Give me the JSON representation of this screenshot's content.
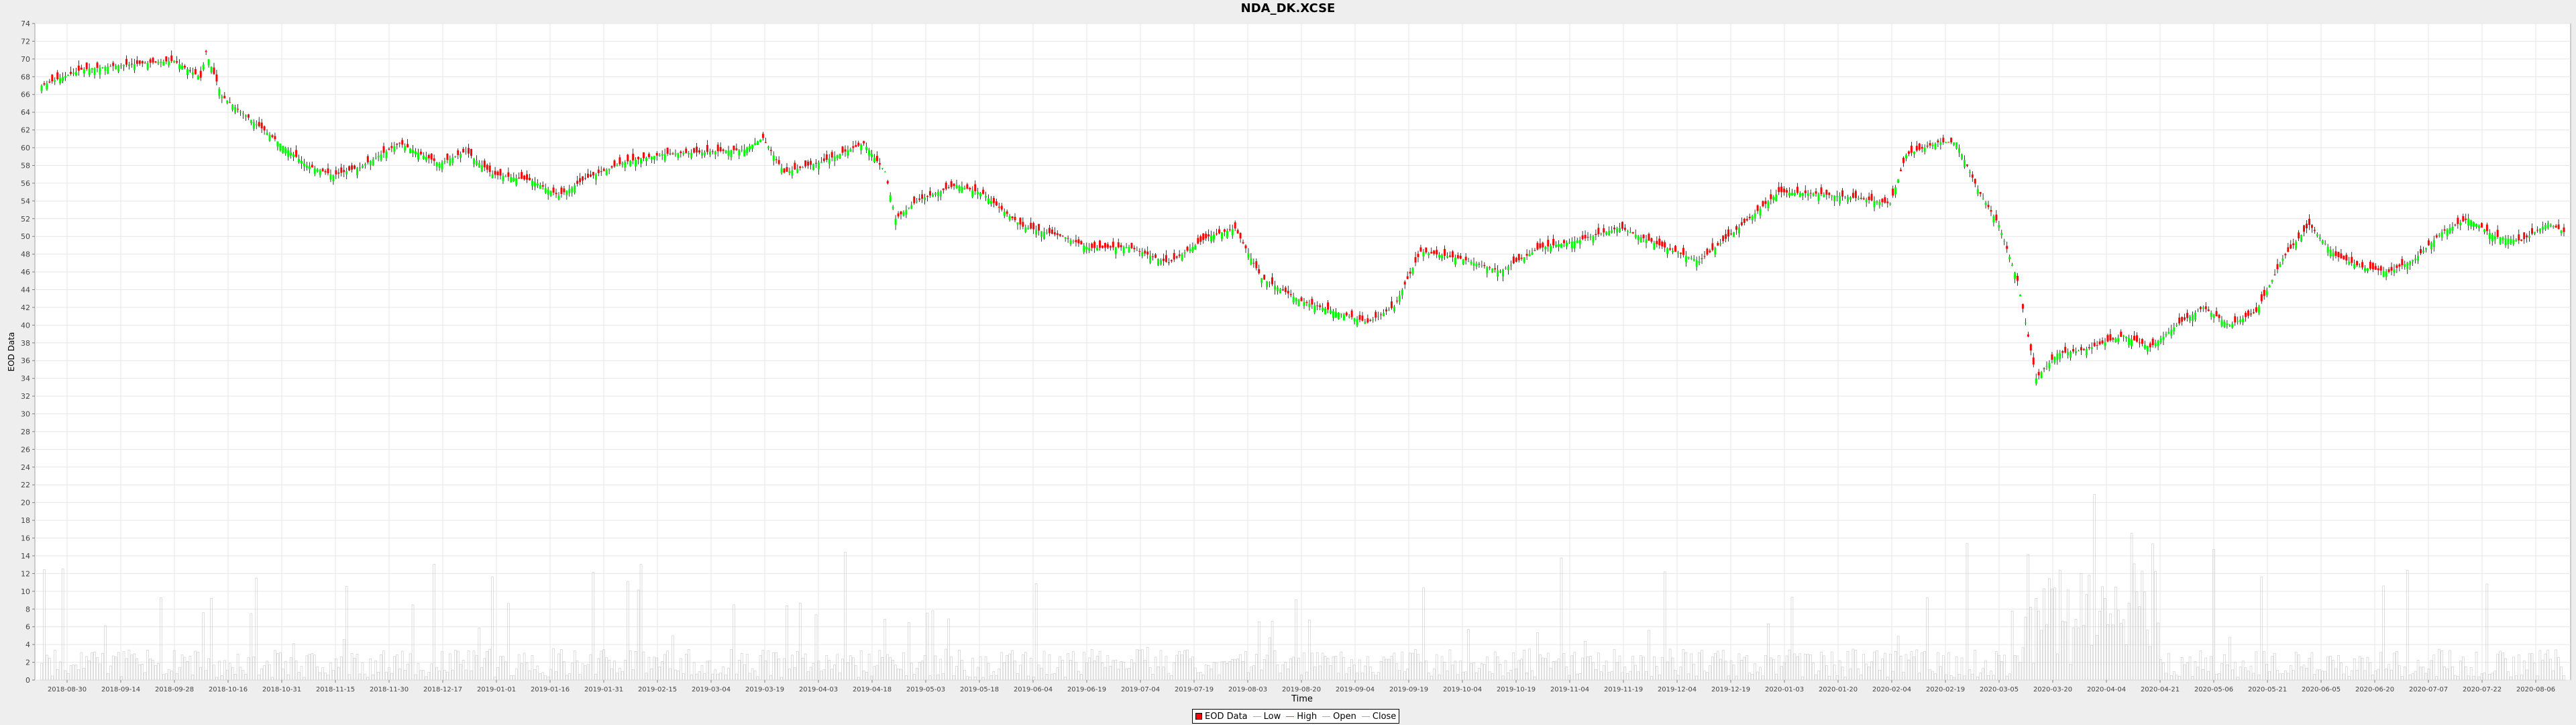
{
  "chart_data": {
    "type": "candlestick",
    "title": "NDA_DK.XCSE",
    "xlabel": "Time",
    "ylabel": "EOD Data",
    "ylim": [
      0,
      74
    ],
    "y_ticks": [
      0,
      2,
      4,
      6,
      8,
      10,
      12,
      14,
      16,
      18,
      20,
      22,
      24,
      26,
      28,
      30,
      32,
      34,
      36,
      38,
      40,
      42,
      44,
      46,
      48,
      50,
      52,
      54,
      56,
      58,
      60,
      62,
      64,
      66,
      68,
      70,
      72,
      74
    ],
    "x_ticks": [
      "2018-08-30",
      "2018-09-14",
      "2018-09-28",
      "2018-10-16",
      "2018-10-31",
      "2018-11-15",
      "2018-11-30",
      "2018-12-17",
      "2019-01-01",
      "2019-01-16",
      "2019-01-31",
      "2019-02-15",
      "2019-03-04",
      "2019-03-19",
      "2019-04-03",
      "2019-04-18",
      "2019-05-03",
      "2019-05-18",
      "2019-06-04",
      "2019-06-19",
      "2019-07-04",
      "2019-07-19",
      "2019-08-03",
      "2019-08-20",
      "2019-09-04",
      "2019-09-19",
      "2019-10-04",
      "2019-10-19",
      "2019-11-04",
      "2019-11-19",
      "2019-12-04",
      "2019-12-19",
      "2020-01-03",
      "2020-01-20",
      "2020-02-04",
      "2020-02-19",
      "2020-03-05",
      "2020-03-20",
      "2020-04-04",
      "2020-04-21",
      "2020-05-06",
      "2020-05-21",
      "2020-06-05",
      "2020-06-20",
      "2020-07-07",
      "2020-07-22",
      "2020-08-06"
    ],
    "grid": true,
    "legend_position": "bottom",
    "colors": {
      "up": "#00ff00",
      "down": "#ff0000",
      "volume": "#c8c8c8",
      "wick": "#000000",
      "grid": "#e6e6e6"
    },
    "legend": [
      {
        "label": "EOD Data",
        "kind": "box",
        "color": "#ff0000"
      },
      {
        "label": "Low",
        "kind": "line",
        "color": "#aaaaaa"
      },
      {
        "label": "High",
        "kind": "line",
        "color": "#00cc00"
      },
      {
        "label": "Open",
        "kind": "line",
        "color": "#aaaaaa"
      },
      {
        "label": "Close",
        "kind": "line",
        "color": "#aaaaaa"
      }
    ],
    "close_path": [
      [
        0,
        67.0
      ],
      [
        15,
        68.8
      ],
      [
        30,
        69.3
      ],
      [
        50,
        69.8
      ],
      [
        60,
        67.9
      ],
      [
        62,
        70.8
      ],
      [
        68,
        65.8
      ],
      [
        85,
        61.7
      ],
      [
        100,
        58.0
      ],
      [
        110,
        56.9
      ],
      [
        120,
        57.8
      ],
      [
        135,
        60.5
      ],
      [
        150,
        58.2
      ],
      [
        160,
        59.6
      ],
      [
        170,
        57.0
      ],
      [
        185,
        56.3
      ],
      [
        195,
        54.6
      ],
      [
        205,
        56.5
      ],
      [
        220,
        58.4
      ],
      [
        235,
        59.3
      ],
      [
        250,
        59.5
      ],
      [
        265,
        59.8
      ],
      [
        272,
        61.1
      ],
      [
        280,
        57.2
      ],
      [
        295,
        58.5
      ],
      [
        310,
        60.5
      ],
      [
        318,
        57.3
      ],
      [
        322,
        52.0
      ],
      [
        330,
        54.0
      ],
      [
        338,
        55.0
      ],
      [
        345,
        55.8
      ],
      [
        355,
        54.8
      ],
      [
        360,
        53.5
      ],
      [
        370,
        51.1
      ],
      [
        385,
        50.0
      ],
      [
        395,
        48.7
      ],
      [
        410,
        48.8
      ],
      [
        425,
        47.0
      ],
      [
        440,
        50.0
      ],
      [
        450,
        50.9
      ],
      [
        460,
        45.3
      ],
      [
        475,
        42.7
      ],
      [
        490,
        41.3
      ],
      [
        500,
        40.3
      ],
      [
        510,
        42.1
      ],
      [
        520,
        48.3
      ],
      [
        535,
        47.5
      ],
      [
        550,
        46.1
      ],
      [
        565,
        48.7
      ],
      [
        580,
        49.6
      ],
      [
        595,
        51.0
      ],
      [
        610,
        49.0
      ],
      [
        625,
        47.2
      ],
      [
        640,
        51.0
      ],
      [
        655,
        55.0
      ],
      [
        670,
        54.8
      ],
      [
        685,
        54.3
      ],
      [
        697,
        53.7
      ],
      [
        703,
        59.2
      ],
      [
        715,
        60.6
      ],
      [
        722,
        60.6
      ],
      [
        730,
        55.3
      ],
      [
        738,
        51.3
      ],
      [
        745,
        45.0
      ],
      [
        752,
        34.0
      ],
      [
        760,
        36.8
      ],
      [
        770,
        37.2
      ],
      [
        785,
        38.8
      ],
      [
        795,
        37.5
      ],
      [
        805,
        40.0
      ],
      [
        815,
        42.0
      ],
      [
        825,
        40.0
      ],
      [
        835,
        41.5
      ],
      [
        845,
        47.5
      ],
      [
        855,
        51.3
      ],
      [
        865,
        47.8
      ],
      [
        875,
        46.5
      ],
      [
        885,
        46.0
      ],
      [
        895,
        47.5
      ],
      [
        905,
        50.5
      ],
      [
        915,
        52.0
      ],
      [
        925,
        50.0
      ],
      [
        935,
        49.5
      ],
      [
        945,
        51.5
      ],
      [
        951,
        50.5
      ]
    ]
  }
}
